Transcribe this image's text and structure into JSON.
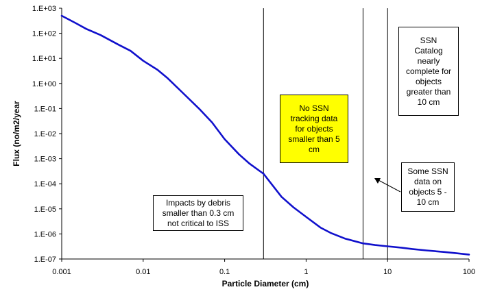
{
  "chart_data": {
    "type": "line",
    "xlabel": "Particle Diameter (cm)",
    "ylabel": "Flux (no/m2/year",
    "x_scale": "log",
    "y_scale": "log",
    "xlim": [
      0.001,
      100
    ],
    "ylim": [
      1e-07,
      1000
    ],
    "x_ticks": [
      "0.001",
      "0.01",
      "0.1",
      "1",
      "10",
      "100"
    ],
    "y_ticks": [
      "1.E-07",
      "1.E-06",
      "1.E-05",
      "1.E-04",
      "1.E-03",
      "1.E-02",
      "1.E-01",
      "1.E+00",
      "1.E+01",
      "1.E+02",
      "1.E+03"
    ],
    "grid": false,
    "legend": "none",
    "line_color": "#1010cc",
    "series": [
      {
        "x": [
          0.001,
          0.0015,
          0.002,
          0.003,
          0.005,
          0.007,
          0.01,
          0.015,
          0.02,
          0.03,
          0.05,
          0.07,
          0.1,
          0.15,
          0.2,
          0.3,
          0.5,
          0.7,
          1,
          1.5,
          2,
          3,
          5,
          7,
          10,
          15,
          20,
          30,
          50,
          70,
          100
        ],
        "y": [
          500,
          250,
          150,
          85,
          35,
          20,
          8,
          3.5,
          1.6,
          0.45,
          0.09,
          0.028,
          0.006,
          0.0015,
          0.00065,
          0.00025,
          3e-05,
          1.15e-05,
          4.8e-06,
          1.8e-06,
          1.1e-06,
          6.5e-07,
          4.2e-07,
          3.6e-07,
          3.2e-07,
          2.8e-07,
          2.5e-07,
          2.2e-07,
          1.9e-07,
          1.7e-07,
          1.5e-07
        ]
      }
    ],
    "vlines": [
      0.3,
      5,
      10
    ],
    "annotations": [
      {
        "id": "debris",
        "text": "Impacts by debris\nsmaller than 0.3 cm\nnot critical to ISS"
      },
      {
        "id": "no_ssn",
        "text": "No SSN\ntracking data\nfor objects\nsmaller than 5\ncm"
      },
      {
        "id": "some_ssn",
        "text": "Some SSN\ndata on\nobjects 5 -\n10 cm"
      },
      {
        "id": "catalog",
        "text": "SSN\nCatalog\nnearly\ncomplete for\nobjects\ngreater than\n10 cm"
      }
    ],
    "highlight_color": "#ffff00"
  }
}
